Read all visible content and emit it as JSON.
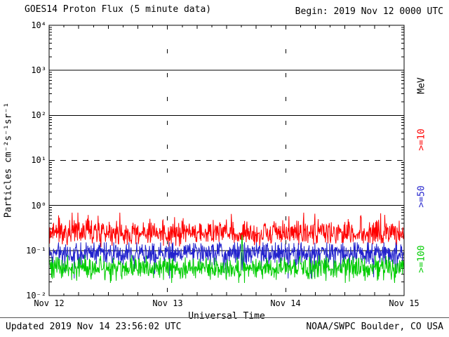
{
  "header": {
    "title": "GOES14 Proton Flux (5 minute data)",
    "begin_label": "Begin: 2019 Nov 12 0000 UTC"
  },
  "footer": {
    "updated": "Updated 2019 Nov 14 23:56:02 UTC",
    "source": "NOAA/SWPC Boulder, CO USA"
  },
  "chart_data": {
    "type": "line",
    "title": "GOES14 Proton Flux (5 minute data)",
    "xlabel": "Universal Time",
    "ylabel": "Particles cm⁻²s⁻¹sr⁻¹",
    "right_axis_label": "MeV",
    "x_ticks": [
      "Nov 12",
      "Nov 13",
      "Nov 14",
      "Nov 15"
    ],
    "y_ticks": [
      "10⁴",
      "10³",
      "10²",
      "10¹",
      "10⁰",
      "10⁻¹",
      "10⁻²"
    ],
    "y_range_log10": [
      -2,
      4
    ],
    "x_range_days": 3,
    "points_per_day": 288,
    "grid": {
      "solid_decades_log10": [
        3,
        2,
        0,
        -1
      ],
      "dashed_decade_log10": 1,
      "vertical_day_lines_at_day": [
        1,
        2
      ]
    },
    "series": [
      {
        "label": ">=10",
        "unit": "MeV",
        "color": "#ff0000",
        "base_log10": -0.62,
        "noise_log10": 0.16,
        "spike_prob": 0.05,
        "spike_log10": 0.3,
        "clamp_log10": [
          -0.95,
          -0.16
        ],
        "seed": 7,
        "approx_flux_particles": [
          0.1,
          0.7
        ]
      },
      {
        "label": ">=50",
        "unit": "MeV",
        "color": "#2222cc",
        "base_log10": -1.05,
        "noise_log10": 0.15,
        "spike_prob": 0.06,
        "spike_log10": -0.35,
        "clamp_log10": [
          -1.62,
          -0.82
        ],
        "seed": 13,
        "approx_flux_particles": [
          0.03,
          0.15
        ]
      },
      {
        "label": ">=100",
        "unit": "MeV",
        "color": "#00cc00",
        "base_log10": -1.38,
        "noise_log10": 0.15,
        "spike_prob": 0.04,
        "spike_log10": -0.25,
        "clamp_log10": [
          -1.72,
          -1.05
        ],
        "seed": 21,
        "event_spike": {
          "day_fraction": 1.63,
          "log10_value": -0.65
        },
        "approx_flux_particles": [
          0.02,
          0.09
        ]
      }
    ]
  }
}
